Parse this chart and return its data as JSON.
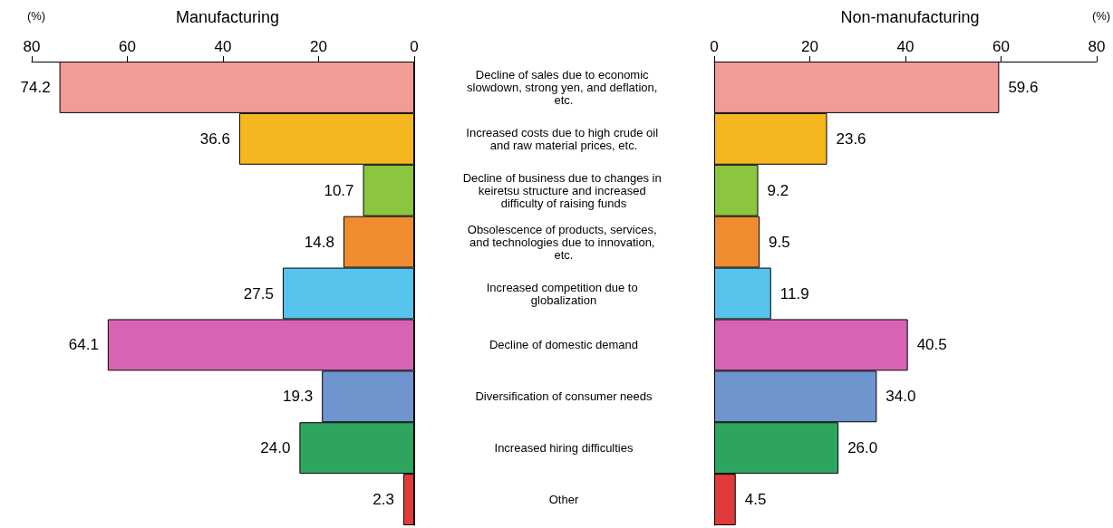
{
  "chart_data": [
    {
      "type": "bar",
      "orientation": "horizontal",
      "title": "Manufacturing",
      "xlabel": "(%)",
      "categories": [
        "Decline of sales due to economic slowdown, strong yen, and deflation, etc.",
        "Increased costs due to high crude oil and raw material prices, etc.",
        "Decline of business due to changes in keiretsu structure and increased difficulty of raising funds",
        "Obsolescence of products, services, and technologies due to innovation, etc.",
        "Increased competition due to globalization",
        "Decline of domestic demand",
        "Diversification of consumer needs",
        "Increased hiring difficulties",
        "Other"
      ],
      "values": [
        74.2,
        36.6,
        10.7,
        14.8,
        27.5,
        64.1,
        19.3,
        24.0,
        2.3
      ],
      "colors": [
        "#f29c97",
        "#f5b71f",
        "#8cc53f",
        "#f08c30",
        "#56c3ec",
        "#d863b5",
        "#6f95cf",
        "#2ea55e",
        "#e03a3a"
      ],
      "value_labels": [
        "74.2",
        "36.6",
        "10.7",
        "14.8",
        "27.5",
        "64.1",
        "19.3",
        "24.0",
        "2.3"
      ],
      "xlim": [
        80,
        0
      ],
      "xticks": [
        80,
        60,
        40,
        20,
        0
      ],
      "grid": false
    },
    {
      "type": "bar",
      "orientation": "horizontal",
      "title": "Non-manufacturing",
      "xlabel": "(%)",
      "categories": [
        null,
        null,
        null,
        null,
        null,
        null,
        null,
        null,
        null
      ],
      "values": [
        59.6,
        23.6,
        9.2,
        9.5,
        11.9,
        40.5,
        34.0,
        26.0,
        4.5
      ],
      "colors": [
        "#f29c97",
        "#f5b71f",
        "#8cc53f",
        "#f08c30",
        "#56c3ec",
        "#d863b5",
        "#6f95cf",
        "#2ea55e",
        "#e03a3a"
      ],
      "value_labels": [
        "59.6",
        "23.6",
        "9.2",
        "9.5",
        "11.9",
        "40.5",
        "34.0",
        "26.0",
        "4.5"
      ],
      "xlim": [
        0,
        80
      ],
      "xticks": [
        0,
        20,
        40,
        60,
        80
      ],
      "grid": false,
      "tick_labels": "x"
    }
  ]
}
